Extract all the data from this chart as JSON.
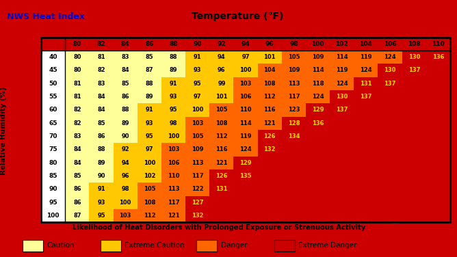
{
  "title_left": "NWS Heat Index",
  "title_center": "Temperature (°F)",
  "ylabel": "Relative Humidity (%)",
  "subtitle": "Likelihood of Heat Disorders with Prolonged Exposure or Strenuous Activity",
  "temp_cols": [
    80,
    82,
    84,
    86,
    88,
    90,
    92,
    94,
    96,
    98,
    100,
    102,
    104,
    106,
    108,
    110
  ],
  "humidity_rows": [
    40,
    45,
    50,
    55,
    60,
    65,
    70,
    75,
    80,
    85,
    90,
    95,
    100
  ],
  "table_data": [
    [
      80,
      81,
      83,
      85,
      88,
      91,
      94,
      97,
      101,
      105,
      109,
      114,
      119,
      124,
      130,
      136
    ],
    [
      80,
      82,
      84,
      87,
      89,
      93,
      96,
      100,
      104,
      109,
      114,
      119,
      124,
      130,
      137,
      null
    ],
    [
      81,
      83,
      85,
      88,
      91,
      95,
      99,
      103,
      108,
      113,
      118,
      124,
      131,
      137,
      null,
      null
    ],
    [
      81,
      84,
      86,
      89,
      93,
      97,
      101,
      106,
      112,
      117,
      124,
      130,
      137,
      null,
      null,
      null
    ],
    [
      82,
      84,
      88,
      91,
      95,
      100,
      105,
      110,
      116,
      123,
      129,
      137,
      null,
      null,
      null,
      null
    ],
    [
      82,
      85,
      89,
      93,
      98,
      103,
      108,
      114,
      121,
      128,
      136,
      null,
      null,
      null,
      null,
      null
    ],
    [
      83,
      86,
      90,
      95,
      100,
      105,
      112,
      119,
      126,
      134,
      null,
      null,
      null,
      null,
      null,
      null
    ],
    [
      84,
      88,
      92,
      97,
      103,
      109,
      116,
      124,
      132,
      null,
      null,
      null,
      null,
      null,
      null,
      null
    ],
    [
      84,
      89,
      94,
      100,
      106,
      113,
      121,
      129,
      null,
      null,
      null,
      null,
      null,
      null,
      null,
      null
    ],
    [
      85,
      90,
      96,
      102,
      110,
      117,
      126,
      135,
      null,
      null,
      null,
      null,
      null,
      null,
      null,
      null
    ],
    [
      86,
      91,
      98,
      105,
      113,
      122,
      131,
      null,
      null,
      null,
      null,
      null,
      null,
      null,
      null,
      null
    ],
    [
      86,
      93,
      100,
      108,
      117,
      127,
      null,
      null,
      null,
      null,
      null,
      null,
      null,
      null,
      null,
      null
    ],
    [
      87,
      95,
      103,
      112,
      121,
      132,
      null,
      null,
      null,
      null,
      null,
      null,
      null,
      null,
      null,
      null
    ]
  ],
  "color_caution": "#FFFF99",
  "color_extreme_caution": "#FFC800",
  "color_danger": "#FF6600",
  "color_extreme_danger": "#CC0000",
  "color_background_red": "#CC0000",
  "title_color": "#0000CC",
  "legend_labels": [
    "Caution",
    "Extreme Caution",
    "Danger",
    "Extreme Danger"
  ],
  "legend_colors": [
    "#FFFF99",
    "#FFC800",
    "#FF6600",
    "#CC0000"
  ],
  "caution_max": 91,
  "extreme_caution_max": 103,
  "danger_max": 125,
  "noaa_circle_color": "#4488CC",
  "cell_text_dark": "#000000",
  "cell_text_light": "#FFD700",
  "cell_text_light_threshold": 125
}
